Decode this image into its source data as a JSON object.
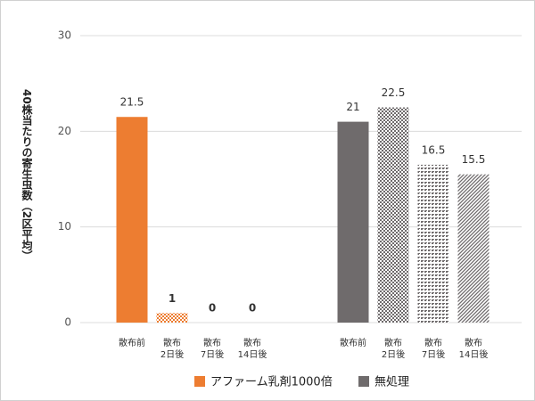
{
  "chart_data": {
    "type": "bar",
    "y_label": "40株当たりの寄生虫数（2区平均）",
    "categories": [
      [
        "散布前"
      ],
      [
        "散布",
        "2日後"
      ],
      [
        "散布",
        "7日後"
      ],
      [
        "散布",
        "14日後"
      ]
    ],
    "series": [
      {
        "name": "アファーム乳剤1000倍",
        "color": "#ed7d31",
        "values": [
          21.5,
          1,
          0,
          0
        ],
        "label_colors": [
          "#333333",
          "#e00000",
          "#e00000",
          "#e00000"
        ]
      },
      {
        "name": "無処理",
        "color": "#6f6b6c",
        "values": [
          21,
          22.5,
          16.5,
          15.5
        ],
        "label_colors": [
          "#333333",
          "#333333",
          "#333333",
          "#333333"
        ]
      }
    ],
    "ylim": [
      0,
      30
    ],
    "yticks": [
      0,
      10,
      20,
      30
    ],
    "grid": true
  }
}
